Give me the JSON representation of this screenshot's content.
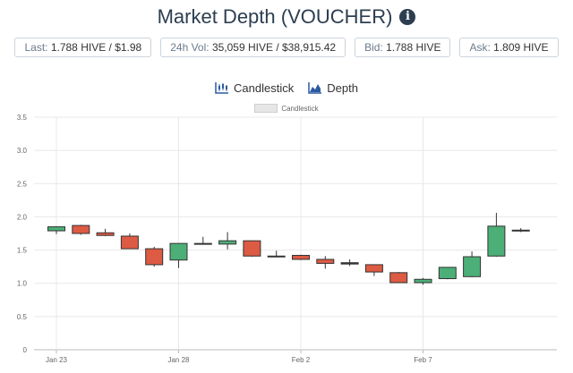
{
  "header": {
    "title": "Market Depth (VOUCHER)",
    "info_icon": "info-circle-icon"
  },
  "stats": [
    {
      "label": "Last:",
      "value": "1.788 HIVE / $1.98"
    },
    {
      "label": "24h Vol:",
      "value": "35,059 HIVE / $38,915.42"
    },
    {
      "label": "Bid:",
      "value": "1.788 HIVE"
    },
    {
      "label": "Ask:",
      "value": "1.809 HIVE"
    }
  ],
  "toggles": {
    "candlestick": {
      "label": "Candlestick",
      "icon": "candlestick-chart-icon"
    },
    "depth": {
      "label": "Depth",
      "icon": "area-chart-icon"
    }
  },
  "chart_data": {
    "type": "candlestick",
    "legend": [
      "Candlestick"
    ],
    "ylim": [
      0,
      3.5
    ],
    "yticks": [
      "0",
      "0.5",
      "1.0",
      "1.5",
      "2.0",
      "2.5",
      "3.0",
      "3.5"
    ],
    "xtick_labels": [
      {
        "label": "Jan 23",
        "index": 0
      },
      {
        "label": "Jan 28",
        "index": 5
      },
      {
        "label": "Feb 2",
        "index": 10
      },
      {
        "label": "Feb 7",
        "index": 15
      }
    ],
    "up_color": "#4caf78",
    "down_color": "#dd5a43",
    "candles": [
      {
        "o": 1.79,
        "h": 1.86,
        "l": 1.74,
        "c": 1.85
      },
      {
        "o": 1.87,
        "h": 1.88,
        "l": 1.73,
        "c": 1.75
      },
      {
        "o": 1.76,
        "h": 1.82,
        "l": 1.71,
        "c": 1.72
      },
      {
        "o": 1.71,
        "h": 1.75,
        "l": 1.52,
        "c": 1.52
      },
      {
        "o": 1.52,
        "h": 1.55,
        "l": 1.25,
        "c": 1.28
      },
      {
        "o": 1.35,
        "h": 1.6,
        "l": 1.23,
        "c": 1.6
      },
      {
        "o": 1.6,
        "h": 1.7,
        "l": 1.59,
        "c": 1.6
      },
      {
        "o": 1.59,
        "h": 1.77,
        "l": 1.51,
        "c": 1.64
      },
      {
        "o": 1.64,
        "h": 1.64,
        "l": 1.4,
        "c": 1.41
      },
      {
        "o": 1.41,
        "h": 1.49,
        "l": 1.4,
        "c": 1.41
      },
      {
        "o": 1.42,
        "h": 1.43,
        "l": 1.35,
        "c": 1.36
      },
      {
        "o": 1.36,
        "h": 1.41,
        "l": 1.22,
        "c": 1.3
      },
      {
        "o": 1.31,
        "h": 1.36,
        "l": 1.26,
        "c": 1.29
      },
      {
        "o": 1.28,
        "h": 1.28,
        "l": 1.11,
        "c": 1.17
      },
      {
        "o": 1.16,
        "h": 1.17,
        "l": 1.01,
        "c": 1.01
      },
      {
        "o": 1.01,
        "h": 1.08,
        "l": 0.98,
        "c": 1.06
      },
      {
        "o": 1.07,
        "h": 1.24,
        "l": 1.06,
        "c": 1.24
      },
      {
        "o": 1.1,
        "h": 1.48,
        "l": 1.09,
        "c": 1.4
      },
      {
        "o": 1.41,
        "h": 2.06,
        "l": 1.4,
        "c": 1.86
      },
      {
        "o": 1.79,
        "h": 1.83,
        "l": 1.77,
        "c": 1.8
      }
    ]
  }
}
